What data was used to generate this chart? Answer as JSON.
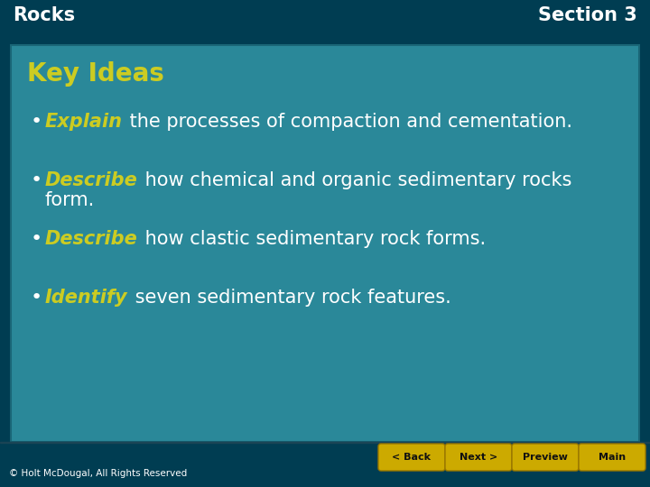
{
  "title_left": "Rocks",
  "title_right": "Section 3",
  "header": "Key Ideas",
  "bg_dark": "#003d52",
  "bg_content": "#2a8899",
  "text_white": "#ffffff",
  "text_yellow": "#cccc22",
  "copyright": "© Holt McDougal, All Rights Reserved",
  "bullet_items": [
    {
      "keyword": "Explain",
      "rest1": " the processes of compaction and cementation.",
      "rest2": ""
    },
    {
      "keyword": "Describe",
      "rest1": " how chemical and organic sedimentary rocks",
      "rest2": "form."
    },
    {
      "keyword": "Describe",
      "rest1": " how clastic sedimentary rock forms.",
      "rest2": ""
    },
    {
      "keyword": "Identify",
      "rest1": " seven sedimentary rock features.",
      "rest2": ""
    }
  ],
  "nav_buttons": [
    "< Back",
    "Next >",
    "Preview",
    "Main"
  ],
  "nav_color": "#ccaa00",
  "nav_text_color": "#111111",
  "content_border_color": "#1a6677",
  "header_fontsize": 20,
  "body_fontsize": 15,
  "title_fontsize": 15
}
